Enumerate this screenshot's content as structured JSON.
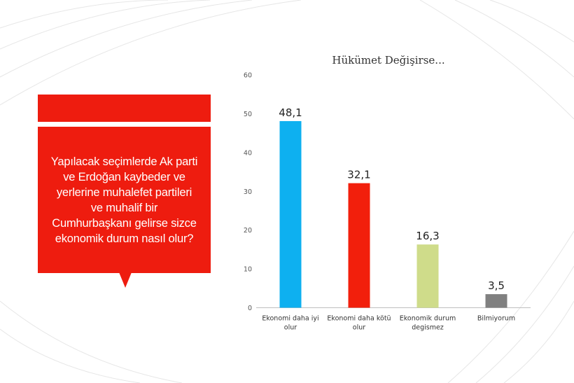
{
  "question": "Yapılacak seçimlerde Ak parti\nve Erdoğan kaybeder ve\nyerlerine muhalefet partileri\nve muhalif bir\nCumhurbaşkanı gelirse sizce\nekonomik durum nasıl olur?",
  "colors": {
    "accent": "#ee1c0f",
    "bars": [
      "#0eb0f0",
      "#f21f0c",
      "#cfdc8a",
      "#808080"
    ]
  },
  "chart_data": {
    "type": "bar",
    "title": "Hükümet Değişirse...",
    "categories": [
      [
        "Ekonomi daha iyi",
        "olur"
      ],
      [
        "Ekonomi daha kötü",
        "olur"
      ],
      [
        "Ekonomik durum",
        "degismez"
      ],
      [
        "Bilmiyorum"
      ]
    ],
    "values": [
      48.1,
      32.1,
      16.3,
      3.5
    ],
    "value_labels": [
      "48,1",
      "32,1",
      "16,3",
      "3,5"
    ],
    "ylim": [
      0,
      60
    ],
    "yticks": [
      0,
      10,
      20,
      30,
      40,
      50,
      60
    ],
    "grid": false,
    "legend": "none"
  }
}
